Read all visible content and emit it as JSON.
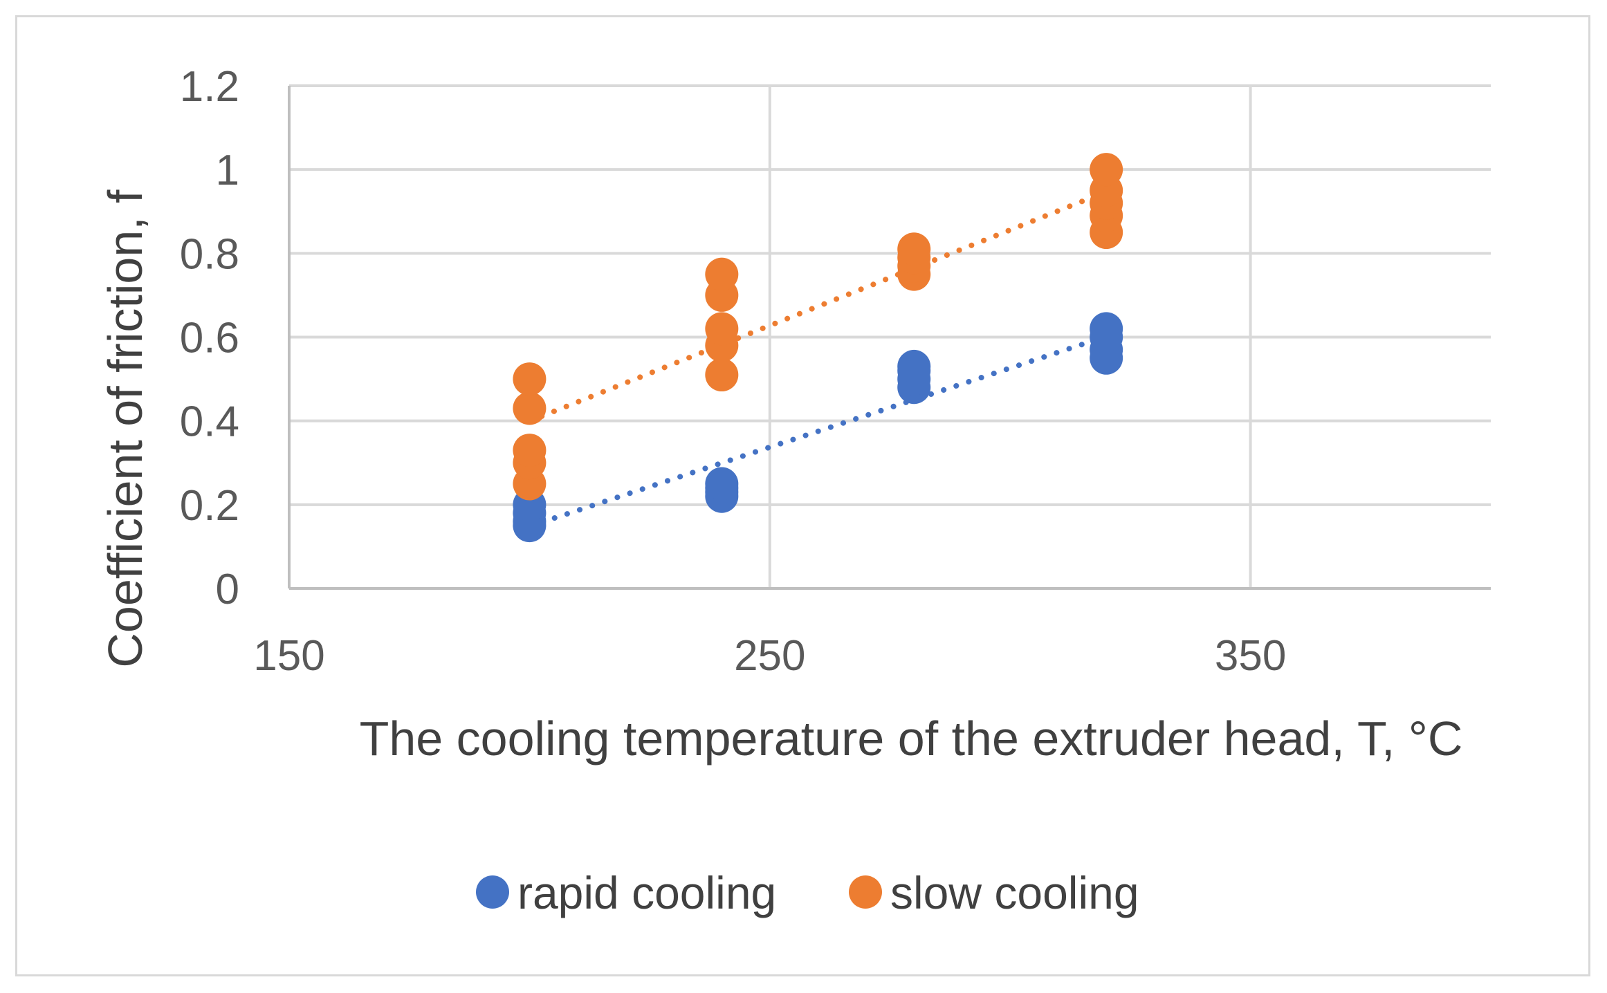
{
  "chart_data": {
    "type": "scatter",
    "title": "",
    "xlabel": "The cooling temperature of the extruder head, T, °C",
    "ylabel": "Coefficient of friction, f",
    "xlim": [
      150,
      400
    ],
    "ylim": [
      0,
      1.2
    ],
    "x_ticks": [
      150,
      250,
      350
    ],
    "x_tick_labels": [
      "150",
      "250",
      "350"
    ],
    "y_ticks": [
      0,
      0.2,
      0.4,
      0.6,
      0.8,
      1.0,
      1.2
    ],
    "y_tick_labels": [
      "0",
      "0.2",
      "0.4",
      "0.6",
      "0.8",
      "1",
      "1.2"
    ],
    "grid": true,
    "legend_position": "bottom",
    "series": [
      {
        "name": "rapid cooling",
        "color": "#4472c4",
        "trendline": "linear",
        "points": [
          [
            200,
            0.15
          ],
          [
            200,
            0.16
          ],
          [
            200,
            0.18
          ],
          [
            200,
            0.2
          ],
          [
            240,
            0.22
          ],
          [
            240,
            0.23
          ],
          [
            240,
            0.24
          ],
          [
            240,
            0.25
          ],
          [
            280,
            0.48
          ],
          [
            280,
            0.5
          ],
          [
            280,
            0.52
          ],
          [
            280,
            0.53
          ],
          [
            320,
            0.55
          ],
          [
            320,
            0.57
          ],
          [
            320,
            0.6
          ],
          [
            320,
            0.62
          ]
        ]
      },
      {
        "name": "slow cooling",
        "color": "#ed7d31",
        "trendline": "linear",
        "points": [
          [
            200,
            0.25
          ],
          [
            200,
            0.3
          ],
          [
            200,
            0.33
          ],
          [
            200,
            0.43
          ],
          [
            200,
            0.5
          ],
          [
            240,
            0.51
          ],
          [
            240,
            0.58
          ],
          [
            240,
            0.62
          ],
          [
            240,
            0.7
          ],
          [
            240,
            0.75
          ],
          [
            280,
            0.75
          ],
          [
            280,
            0.77
          ],
          [
            280,
            0.79
          ],
          [
            280,
            0.81
          ],
          [
            320,
            0.85
          ],
          [
            320,
            0.89
          ],
          [
            320,
            0.92
          ],
          [
            320,
            0.95
          ],
          [
            320,
            1.0
          ]
        ]
      }
    ]
  }
}
